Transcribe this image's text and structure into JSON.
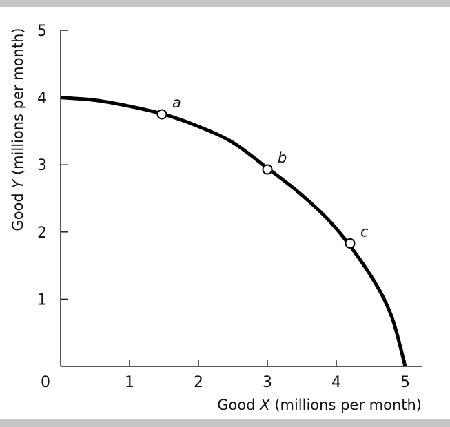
{
  "chart_data": {
    "type": "line",
    "xlabel_parts": [
      "Good ",
      "X",
      " (millions per month)"
    ],
    "ylabel_parts": [
      "Good ",
      "Y",
      " (millions  per month)"
    ],
    "origin_label": "0",
    "xlim": [
      0,
      5
    ],
    "ylim": [
      0,
      5
    ],
    "x_ticks": [
      1,
      2,
      3,
      4,
      5
    ],
    "y_ticks": [
      1,
      2,
      3,
      4,
      5
    ],
    "x_tick_labels": [
      "1",
      "2",
      "3",
      "4",
      "5"
    ],
    "y_tick_labels": [
      "1",
      "2",
      "3",
      "4",
      "5"
    ],
    "grid": false,
    "series": [
      {
        "x": [
          0,
          0.5,
          1.0,
          1.5,
          2.0,
          2.5,
          3.0,
          3.5,
          4.0,
          4.5,
          4.8,
          5.0
        ],
        "y": [
          4.0,
          3.96,
          3.87,
          3.75,
          3.57,
          3.33,
          2.95,
          2.55,
          2.05,
          1.35,
          0.75,
          0.0
        ],
        "color": "#000000"
      }
    ],
    "points": [
      {
        "label": "a",
        "x": 1.47,
        "y": 3.75
      },
      {
        "label": "b",
        "x": 3.0,
        "y": 2.93
      },
      {
        "label": "c",
        "x": 4.2,
        "y": 1.83
      }
    ]
  }
}
